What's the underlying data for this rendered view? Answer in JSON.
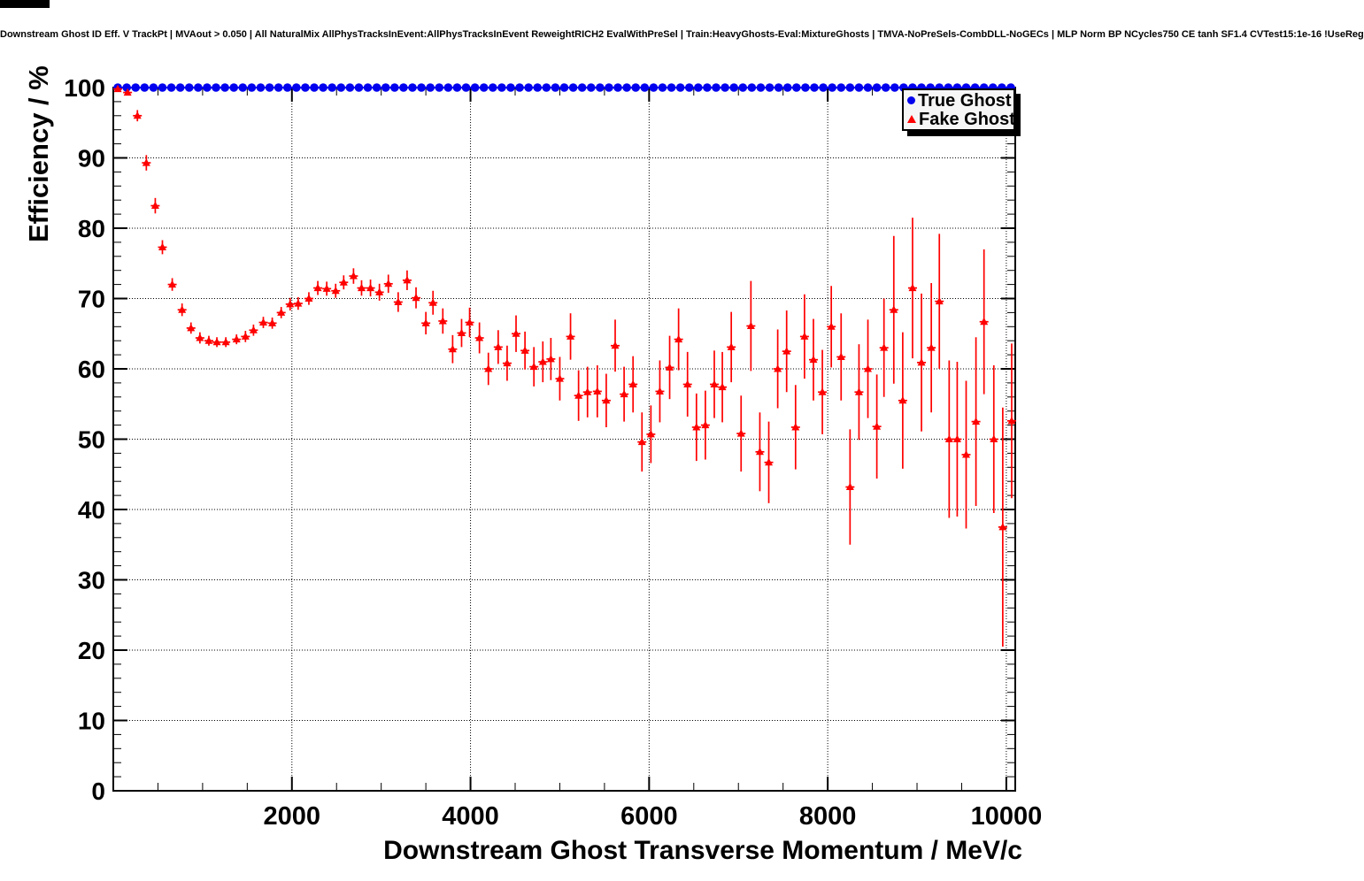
{
  "title": "Downstream Ghost ID Eff. V TrackPt | MVAout > 0.050 | All NaturalMix AllPhysTracksInEvent:AllPhysTracksInEvent ReweightRICH2 EvalWithPreSel | Train:HeavyGhosts-Eval:MixtureGhosts | TMVA-NoPreSels-CombDLL-NoGECs | MLP Norm BP NCycles750 CE tanh SF1.4 CVTest15:1e-16 !UseReg",
  "legend": {
    "entries": [
      {
        "label": "True Ghost",
        "marker": "circle",
        "color": "#0000ee"
      },
      {
        "label": "Fake Ghost",
        "marker": "triangle",
        "color": "#ff0000"
      }
    ],
    "position": "top-right"
  },
  "chart_data": {
    "type": "scatter",
    "title": "Downstream Ghost ID Eff. V TrackPt | MVAout > 0.050 | All NaturalMix AllPhysTracksInEvent:AllPhysTracksInEvent ReweightRICH2 EvalWithPreSel | Train:HeavyGhosts-Eval:MixtureGhosts | TMVA-NoPreSels-CombDLL-NoGECs | MLP Norm BP NCycles750 CE tanh SF1.4 CVTest15:1e-16 !UseReg",
    "xlabel": "Downstream Ghost Transverse Momentum / MeV/c",
    "ylabel": "Efficiency / %",
    "xlim": [
      0,
      10100
    ],
    "ylim": [
      0,
      100
    ],
    "x_major_ticks": [
      2000,
      4000,
      6000,
      8000,
      10000
    ],
    "x_tick_labels": [
      "2000",
      "4000",
      "6000",
      "8000",
      "10000"
    ],
    "x_minor_step": 500,
    "y_major_ticks": [
      0,
      10,
      20,
      30,
      40,
      50,
      60,
      70,
      80,
      90,
      100
    ],
    "y_tick_labels": [
      "0",
      "10",
      "20",
      "30",
      "40",
      "50",
      "60",
      "70",
      "80",
      "90",
      "100"
    ],
    "y_minor_step": 2,
    "grid": "dotted-on-majors",
    "legend_position": "top-right",
    "series": [
      {
        "name": "True Ghost",
        "marker": "circle",
        "color": "#0000ee",
        "x_min": 50,
        "x_step": 100,
        "n": 101,
        "y_constant": 100.0
      },
      {
        "name": "Fake Ghost",
        "marker": "triangle",
        "color": "#ff0000",
        "points_format": [
          "x_MeV",
          "efficiency_pct",
          "err_pct"
        ],
        "points": [
          [
            50,
            99.8,
            0.2
          ],
          [
            160,
            99.3,
            0.3
          ],
          [
            270,
            96.0,
            0.8
          ],
          [
            370,
            89.3,
            1.1
          ],
          [
            470,
            83.2,
            1.1
          ],
          [
            550,
            77.3,
            1.0
          ],
          [
            660,
            72.0,
            0.9
          ],
          [
            770,
            68.4,
            0.9
          ],
          [
            870,
            65.8,
            0.8
          ],
          [
            970,
            64.4,
            0.8
          ],
          [
            1070,
            64.0,
            0.7
          ],
          [
            1160,
            63.8,
            0.7
          ],
          [
            1260,
            63.8,
            0.7
          ],
          [
            1380,
            64.2,
            0.7
          ],
          [
            1480,
            64.6,
            0.8
          ],
          [
            1570,
            65.5,
            0.8
          ],
          [
            1680,
            66.6,
            0.8
          ],
          [
            1780,
            66.5,
            0.8
          ],
          [
            1880,
            68.0,
            0.8
          ],
          [
            1980,
            69.2,
            0.9
          ],
          [
            2070,
            69.3,
            0.9
          ],
          [
            2190,
            70.0,
            0.9
          ],
          [
            2290,
            71.5,
            1.0
          ],
          [
            2390,
            71.4,
            1.0
          ],
          [
            2490,
            71.1,
            1.0
          ],
          [
            2580,
            72.3,
            1.0
          ],
          [
            2690,
            73.2,
            1.1
          ],
          [
            2780,
            71.5,
            1.1
          ],
          [
            2880,
            71.5,
            1.2
          ],
          [
            2980,
            70.9,
            1.2
          ],
          [
            3080,
            72.1,
            1.3
          ],
          [
            3190,
            69.5,
            1.4
          ],
          [
            3290,
            72.6,
            1.4
          ],
          [
            3390,
            70.1,
            1.5
          ],
          [
            3500,
            66.5,
            1.6
          ],
          [
            3580,
            69.4,
            1.7
          ],
          [
            3690,
            66.8,
            1.8
          ],
          [
            3800,
            62.8,
            2.0
          ],
          [
            3900,
            65.1,
            2.0
          ],
          [
            3990,
            66.6,
            2.1
          ],
          [
            4100,
            64.4,
            2.2
          ],
          [
            4200,
            60.0,
            2.3
          ],
          [
            4310,
            63.1,
            2.4
          ],
          [
            4410,
            60.8,
            2.5
          ],
          [
            4510,
            65.0,
            2.6
          ],
          [
            4610,
            62.6,
            2.7
          ],
          [
            4710,
            60.3,
            2.8
          ],
          [
            4810,
            61.0,
            2.9
          ],
          [
            4900,
            61.4,
            3.0
          ],
          [
            5000,
            58.6,
            3.1
          ],
          [
            5120,
            64.6,
            3.3
          ],
          [
            5210,
            56.2,
            3.6
          ],
          [
            5310,
            56.7,
            3.6
          ],
          [
            5420,
            56.8,
            3.7
          ],
          [
            5520,
            55.5,
            3.8
          ],
          [
            5620,
            63.3,
            3.7
          ],
          [
            5720,
            56.4,
            3.9
          ],
          [
            5820,
            57.8,
            4.0
          ],
          [
            5920,
            49.6,
            4.2
          ],
          [
            6020,
            50.7,
            4.1
          ],
          [
            6120,
            56.8,
            4.4
          ],
          [
            6230,
            60.2,
            4.5
          ],
          [
            6330,
            64.2,
            4.4
          ],
          [
            6430,
            57.8,
            4.6
          ],
          [
            6530,
            51.7,
            4.8
          ],
          [
            6630,
            52.0,
            4.9
          ],
          [
            6730,
            57.8,
            4.8
          ],
          [
            6820,
            57.4,
            5.0
          ],
          [
            6920,
            63.1,
            5.0
          ],
          [
            7030,
            50.8,
            5.4
          ],
          [
            7140,
            66.1,
            6.4
          ],
          [
            7240,
            48.2,
            5.6
          ],
          [
            7340,
            46.7,
            5.8
          ],
          [
            7440,
            60.0,
            5.6
          ],
          [
            7540,
            62.5,
            5.8
          ],
          [
            7640,
            51.7,
            6.0
          ],
          [
            7740,
            64.6,
            6.0
          ],
          [
            7840,
            61.3,
            5.8
          ],
          [
            7940,
            56.7,
            6.0
          ],
          [
            8040,
            66.0,
            5.8
          ],
          [
            8150,
            61.7,
            6.2
          ],
          [
            8250,
            43.2,
            8.2
          ],
          [
            8350,
            56.7,
            6.8
          ],
          [
            8450,
            60.0,
            7.0
          ],
          [
            8550,
            51.8,
            7.4
          ],
          [
            8630,
            63.0,
            7.0
          ],
          [
            8740,
            68.4,
            10.5
          ],
          [
            8840,
            55.5,
            9.7
          ],
          [
            8950,
            71.5,
            10.0
          ],
          [
            9050,
            60.9,
            9.8
          ],
          [
            9160,
            63.0,
            9.2
          ],
          [
            9250,
            69.6,
            9.6
          ],
          [
            9360,
            50.0,
            11.2
          ],
          [
            9450,
            50.0,
            11.0
          ],
          [
            9550,
            47.8,
            10.5
          ],
          [
            9660,
            52.5,
            12.0
          ],
          [
            9750,
            66.7,
            10.3
          ],
          [
            9860,
            50.0,
            10.5
          ],
          [
            9960,
            37.5,
            17.0
          ],
          [
            10060,
            52.6,
            11.0
          ]
        ]
      }
    ]
  }
}
